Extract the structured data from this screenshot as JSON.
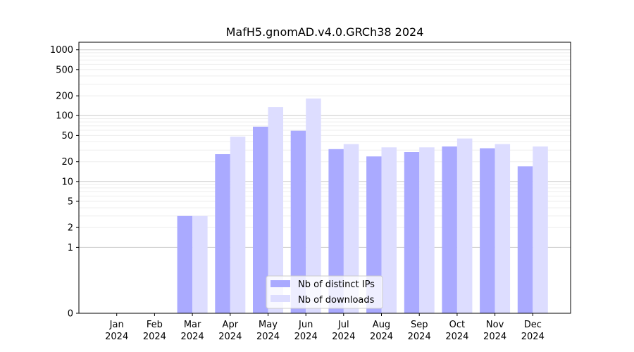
{
  "chart_data": {
    "type": "bar",
    "title": "MafH5.gnomAD.v4.0.GRCh38 2024",
    "xlabel": "",
    "ylabel": "",
    "yscale": "symlog",
    "ylim": [
      0,
      1300
    ],
    "yticks": [
      0,
      1,
      2,
      5,
      10,
      20,
      50,
      100,
      200,
      500,
      1000
    ],
    "categories": [
      [
        "Jan",
        "2024"
      ],
      [
        "Feb",
        "2024"
      ],
      [
        "Mar",
        "2024"
      ],
      [
        "Apr",
        "2024"
      ],
      [
        "May",
        "2024"
      ],
      [
        "Jun",
        "2024"
      ],
      [
        "Jul",
        "2024"
      ],
      [
        "Aug",
        "2024"
      ],
      [
        "Sep",
        "2024"
      ],
      [
        "Oct",
        "2024"
      ],
      [
        "Nov",
        "2024"
      ],
      [
        "Dec",
        "2024"
      ]
    ],
    "series": [
      {
        "name": "Nb of distinct IPs",
        "color": "#aaaaff",
        "values": [
          0,
          0,
          3,
          26,
          68,
          59,
          31,
          24,
          28,
          34,
          32,
          17
        ]
      },
      {
        "name": "Nb of downloads",
        "color": "#ddddff",
        "values": [
          0,
          0,
          3,
          48,
          135,
          182,
          37,
          33,
          33,
          45,
          37,
          34
        ]
      }
    ],
    "legend_position": "lower-center",
    "grid": true
  }
}
